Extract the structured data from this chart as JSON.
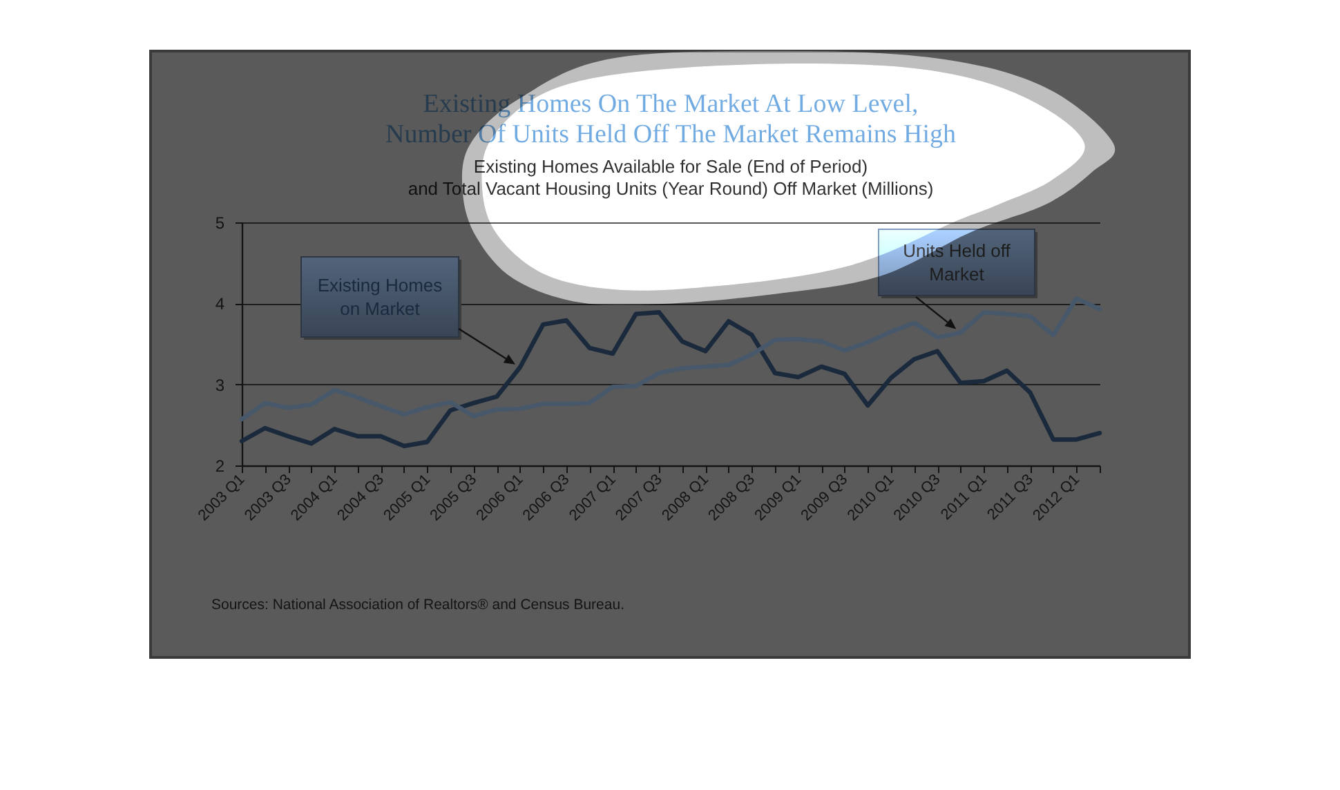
{
  "chart_data": {
    "type": "line",
    "title": "Existing Homes On The Market At Low Level,\nNumber Of Units Held Off The Market Remains High",
    "subtitle": "Existing Homes Available for Sale (End of Period)\nand Total Vacant Housing Units (Year Round) Off Market (Millions)",
    "categories": [
      "2003 Q1",
      null,
      "2003 Q3",
      null,
      "2004 Q1",
      null,
      "2004 Q3",
      null,
      "2005 Q1",
      null,
      "2005 Q3",
      null,
      "2006 Q1",
      null,
      "2006 Q3",
      null,
      "2007 Q1",
      null,
      "2007 Q3",
      null,
      "2008 Q1",
      null,
      "2008 Q3",
      null,
      "2009 Q1",
      null,
      "2009 Q3",
      null,
      "2010 Q1",
      null,
      "2010 Q3",
      null,
      "2011 Q1",
      null,
      "2011 Q3",
      null,
      "2012 Q1",
      null
    ],
    "series": [
      {
        "name": "Existing Homes on Market",
        "color": "#1a293b",
        "values": [
          2.3,
          2.46,
          2.36,
          2.27,
          2.45,
          2.36,
          2.36,
          2.24,
          2.29,
          2.68,
          2.77,
          2.85,
          3.21,
          3.74,
          3.79,
          3.45,
          3.38,
          3.87,
          3.89,
          3.53,
          3.41,
          3.78,
          3.61,
          3.14,
          3.09,
          3.22,
          3.13,
          2.74,
          3.08,
          3.31,
          3.41,
          3.02,
          3.04,
          3.17,
          2.9,
          2.32,
          2.32,
          2.4
        ]
      },
      {
        "name": "Units Held off Market",
        "color": "#48586b",
        "values": [
          2.57,
          2.77,
          2.71,
          2.75,
          2.93,
          2.84,
          2.73,
          2.63,
          2.72,
          2.78,
          2.61,
          2.69,
          2.7,
          2.76,
          2.76,
          2.77,
          2.97,
          2.98,
          3.14,
          3.2,
          3.22,
          3.24,
          3.37,
          3.55,
          3.56,
          3.53,
          3.42,
          3.52,
          3.65,
          3.76,
          3.58,
          3.64,
          3.89,
          3.87,
          3.84,
          3.61,
          4.06,
          3.93
        ]
      }
    ],
    "ylim": [
      2,
      5
    ],
    "yticks": [
      2,
      3,
      4,
      5
    ],
    "grid": "y",
    "annotations": [
      "Sources: National Association of Realtors® and Census Bureau."
    ]
  }
}
